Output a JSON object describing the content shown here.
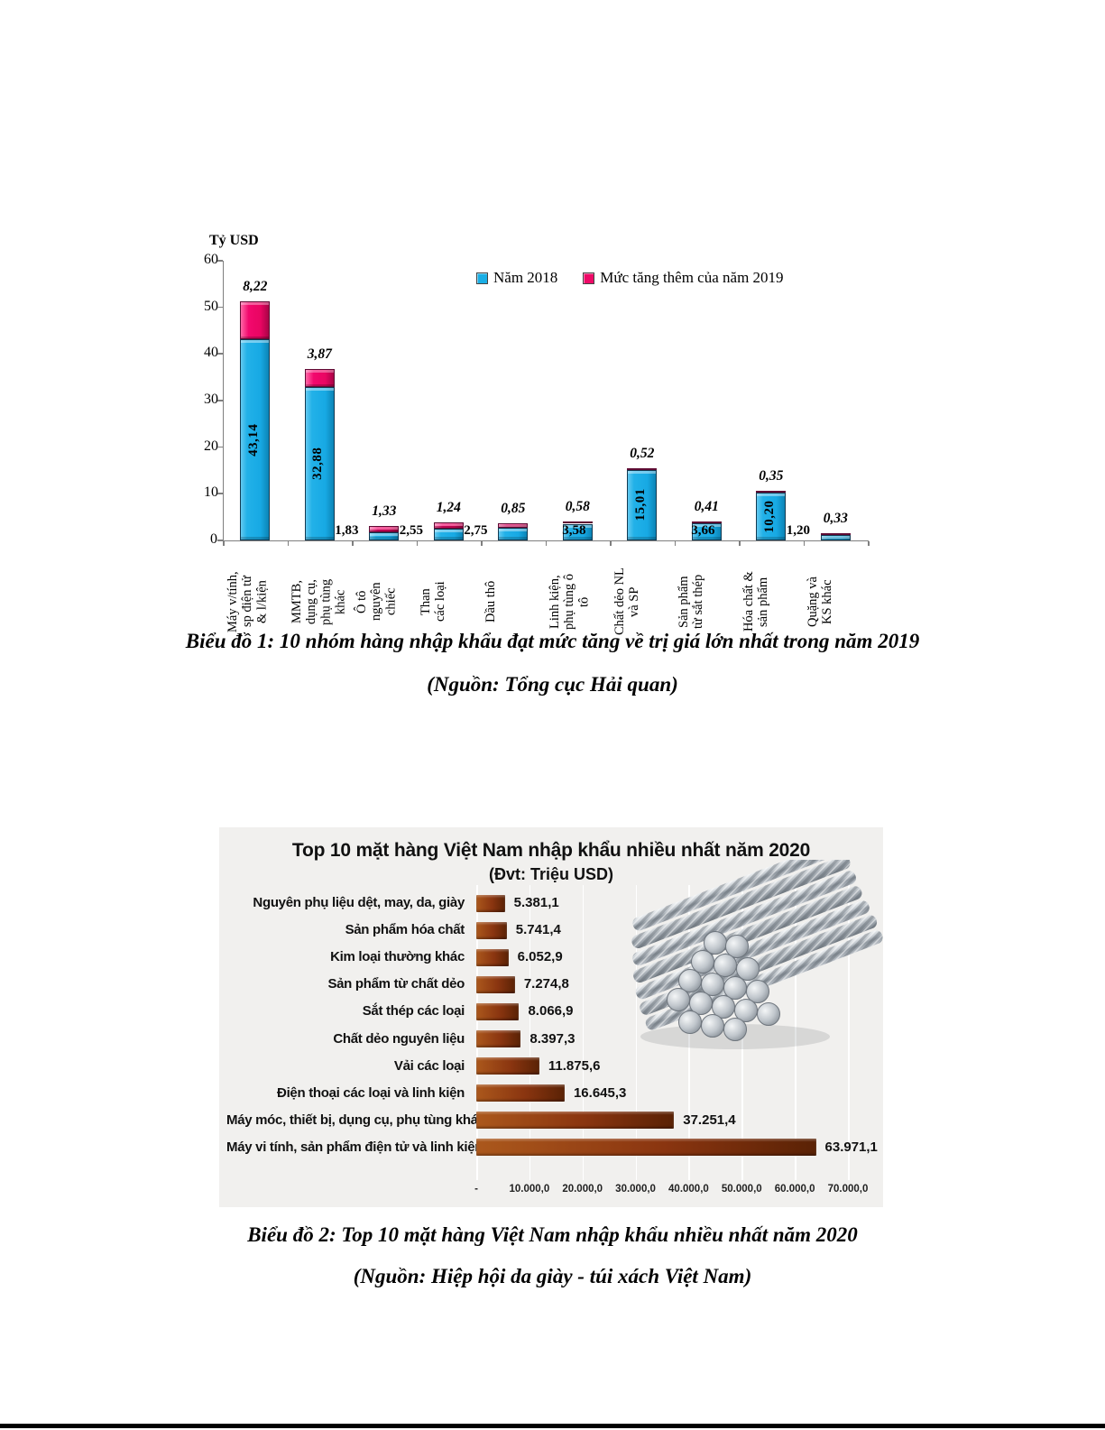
{
  "captions": {
    "chart1_title": "Biểu đồ 1: 10 nhóm hàng nhập khẩu đạt mức tăng về trị giá lớn nhất trong năm 2019",
    "chart1_source": "(Nguồn: Tổng cục Hải quan)",
    "chart2_title": "Biểu đồ 2: Top 10 mặt hàng Việt Nam nhập khẩu nhiều nhất năm 2020",
    "chart2_source": "(Nguồn: Hiệp hội da giày - túi xách Việt Nam)"
  },
  "chart_data": [
    {
      "type": "bar",
      "orientation": "vertical",
      "stacked": true,
      "unit_label": "Tỷ USD",
      "ylim": [
        0,
        60
      ],
      "y_ticks": [
        0,
        10,
        20,
        30,
        40,
        50,
        60
      ],
      "grid": false,
      "legend_position": "top-inside",
      "categories": [
        "Máy v/tính,\nsp điện tử\n& l/kiện",
        "MMTB,\ndụng cụ,\nphụ tùng\nkhác",
        "Ô tô\nnguyên\nchiếc",
        "Than\ncác loại",
        "Dầu thô",
        "Linh kiện,\nphụ tùng ô\ntô",
        "Chất dẻo NL\nvà SP",
        "Sản phẩm\ntừ sắt thép",
        "Hóa chất &\nsản phẩm",
        "Quặng và\nKS khác"
      ],
      "series": [
        {
          "name": "Năm 2018",
          "color": "#1aaee5",
          "values": [
            43.14,
            32.88,
            1.83,
            2.55,
            2.75,
            3.58,
            15.01,
            3.66,
            10.2,
            1.2
          ],
          "labels": [
            "43,14",
            "32,88",
            "1,83",
            "2,55",
            "2,75",
            "3,58",
            "15,01",
            "3,66",
            "10,20",
            "1,20"
          ],
          "label_placement": [
            "inside-vertical",
            "inside-vertical",
            "outside-left",
            "outside-left",
            "outside-left",
            "inside",
            "inside-vertical",
            "inside",
            "inside-vertical",
            "outside-left"
          ]
        },
        {
          "name": "Mức tăng thêm của năm 2019",
          "color": "#ee0a67",
          "values": [
            8.22,
            3.87,
            1.33,
            1.24,
            0.85,
            0.58,
            0.52,
            0.41,
            0.35,
            0.33
          ],
          "labels": [
            "8,22",
            "3,87",
            "1,33",
            "1,24",
            "0,85",
            "0,58",
            "0,52",
            "0,41",
            "0,35",
            "0,33"
          ],
          "label_placement": "above"
        }
      ]
    },
    {
      "type": "bar",
      "orientation": "horizontal",
      "title": "Top 10 mặt hàng Việt Nam nhập khẩu nhiều nhất năm 2020",
      "subtitle": "(Đvt: Triệu USD)",
      "xlim": [
        0,
        70000
      ],
      "x_ticks": [
        "-",
        "10.000,0",
        "20.000,0",
        "30.000,0",
        "40.000,0",
        "50.000,0",
        "60.000,0",
        "70.000,0"
      ],
      "grid": true,
      "bar_colors": [
        "#ab581c",
        "#5a2205"
      ],
      "categories": [
        "Nguyên phụ liệu dệt, may, da, giày",
        "Sản phẩm hóa chất",
        "Kim loại thường khác",
        "Sản phẩm từ chất dẻo",
        "Sắt thép các loại",
        "Chất dẻo nguyên liệu",
        "Vải các loại",
        "Điện thoại các loại và linh kiện",
        "Máy móc, thiết bị, dụng cụ, phụ tùng khác",
        "Máy vi tính, sản phẩm điện tử và linh kiện"
      ],
      "values": [
        5381.1,
        5741.4,
        6052.9,
        7274.8,
        8066.9,
        8397.3,
        11875.6,
        16645.3,
        37251.4,
        63971.1
      ],
      "value_labels": [
        "5.381,1",
        "5.741,4",
        "6.052,9",
        "7.274,8",
        "8.066,9",
        "8.397,3",
        "11.875,6",
        "16.645,3",
        "37.251,4",
        "63.971,1"
      ],
      "illustration": "steel-rebar-photo"
    }
  ]
}
